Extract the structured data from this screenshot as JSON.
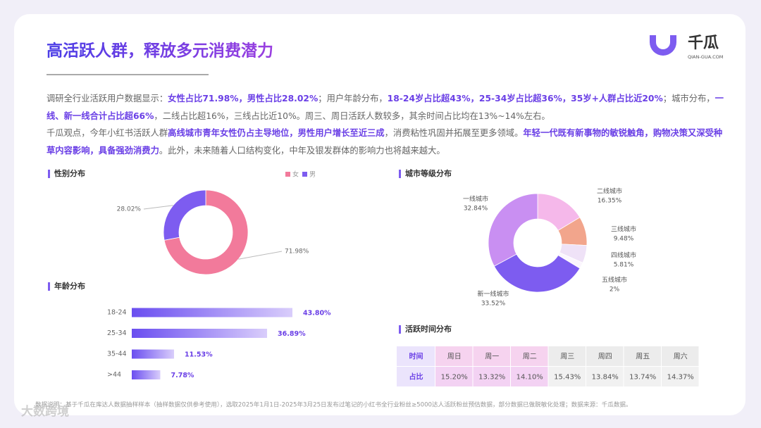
{
  "header": {
    "title": "高活跃人群，释放多元消费潜力",
    "logo": "千瓜",
    "logo_sub": "QIAN-GUA.COM"
  },
  "paragraphs": [
    {
      "runs": [
        {
          "text": "调研全行业活跃用户数据显示：",
          "bold": false
        },
        {
          "text": "女性占比71.98%，男性占比28.02%",
          "bold": true
        },
        {
          "text": "；用户年龄分布，",
          "bold": false
        },
        {
          "text": "18-24岁占比超43%，25-34岁占比超36%，35岁+人群占比近20%",
          "bold": true
        },
        {
          "text": "；城市分布，",
          "bold": false
        },
        {
          "text": "一线、新一线合计占比超66%",
          "bold": true
        },
        {
          "text": "，二线占比超16%，三线占比近10%。周三、周日活跃人数较多，其余时间占比均在13%~14%左右。",
          "bold": false
        }
      ]
    },
    {
      "runs": [
        {
          "text": "千瓜观点，今年小红书活跃人群",
          "bold": false
        },
        {
          "text": "高线城市青年女性仍占主导地位，男性用户增长至近三成",
          "bold": true
        },
        {
          "text": "，消费粘性巩固并拓展至更多领域。",
          "bold": false
        },
        {
          "text": "年轻一代既有新事物的敏锐触角，购物决策又深受种草内容影响，具备强劲消费力",
          "bold": true
        },
        {
          "text": "。此外，未来随着人口结构变化，中年及银发群体的影响力也将越来越大。",
          "bold": false
        }
      ]
    }
  ],
  "chart_data": [
    {
      "type": "donut",
      "title": "性别分布",
      "categories": [
        "女",
        "男"
      ],
      "values": [
        71.98,
        28.02
      ],
      "value_labels": [
        "71.98%",
        "28.02%"
      ],
      "colors": [
        "#f27a9b",
        "#7d5cf0"
      ],
      "legend": "top-right"
    },
    {
      "type": "hbar",
      "title": "年龄分布",
      "categories": [
        "18-24",
        "25-34",
        "35-44",
        ">44"
      ],
      "values": [
        43.8,
        36.89,
        11.53,
        7.78
      ],
      "value_labels": [
        "43.80%",
        "36.89%",
        "11.53%",
        "7.78%"
      ],
      "color": "#7d5cf0"
    },
    {
      "type": "donut",
      "title": "城市等级分布",
      "categories": [
        "二线城市",
        "三线城市",
        "四线城市",
        "五线城市",
        "新一线城市",
        "一线城市"
      ],
      "values": [
        16.35,
        9.48,
        5.81,
        2,
        33.52,
        32.84
      ],
      "value_labels": [
        "16.35%",
        "9.48%",
        "5.81%",
        "2%",
        "33.52%",
        "32.84%"
      ],
      "colors": [
        "#f5b8ea",
        "#f2a58c",
        "#efe2f7",
        "#fbf6fd",
        "#7d5cf0",
        "#c98ff2"
      ]
    }
  ],
  "table": {
    "title": "活跃时间分布",
    "header": [
      "时间",
      "周日",
      "周一",
      "周二",
      "周三",
      "周四",
      "周五",
      "周六"
    ],
    "rows": [
      [
        "占比",
        "15.20%",
        "13.32%",
        "14.10%",
        "15.43%",
        "13.84%",
        "13.74%",
        "14.37%"
      ]
    ]
  },
  "footer": "数据说明：基于千瓜在库达人数据抽样样本（抽样数据仅供参考使用），选取2025年1月1日-2025年3月25日发布过笔记的小红书全行业粉丝≥5000达人活跃粉丝预估数据，部分数据已做脱敏化处理；数据来源：千瓜数据。",
  "watermark": "大数跨境"
}
